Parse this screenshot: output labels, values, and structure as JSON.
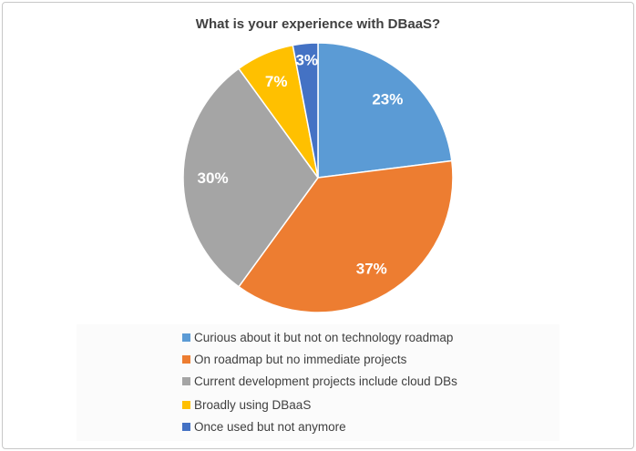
{
  "chart_data": {
    "type": "pie",
    "title": "What is your experience with DBaaS?",
    "categories": [
      "Curious about it but not on technology roadmap",
      "On roadmap but no immediate projects",
      "Current development projects include cloud DBs",
      "Broadly using DBaaS",
      "Once used but not anymore"
    ],
    "values": [
      23,
      37,
      30,
      7,
      3
    ],
    "labels": [
      "23%",
      "37%",
      "30%",
      "7%",
      "3%"
    ],
    "colors": [
      "#5B9BD5",
      "#ED7D31",
      "#A5A5A5",
      "#FFC000",
      "#4472C4"
    ],
    "legend_position": "bottom"
  }
}
